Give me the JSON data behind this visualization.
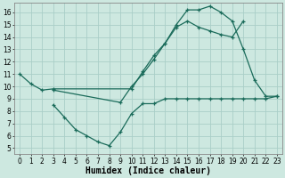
{
  "bg_color": "#cde8e0",
  "grid_color": "#aacec8",
  "line_color": "#1a6b5a",
  "line_width": 0.9,
  "marker": "+",
  "markersize": 3.5,
  "markeredgewidth": 0.9,
  "xlabel": "Humidex (Indice chaleur)",
  "xlabel_fontsize": 7,
  "tick_fontsize": 5.5,
  "xlim": [
    -0.5,
    23.5
  ],
  "ylim": [
    4.5,
    16.8
  ],
  "yticks": [
    5,
    6,
    7,
    8,
    9,
    10,
    11,
    12,
    13,
    14,
    15,
    16
  ],
  "xticks": [
    0,
    1,
    2,
    3,
    4,
    5,
    6,
    7,
    8,
    9,
    10,
    11,
    12,
    13,
    14,
    15,
    16,
    17,
    18,
    19,
    20,
    21,
    22,
    23
  ],
  "line1_x": [
    0,
    1,
    2,
    3,
    10,
    11,
    12,
    13,
    14,
    15,
    16,
    17,
    18,
    19,
    20,
    21,
    22,
    23
  ],
  "line1_y": [
    11.0,
    10.2,
    9.7,
    9.8,
    9.8,
    11.2,
    12.5,
    13.5,
    15.0,
    16.2,
    16.2,
    16.5,
    16.0,
    15.3,
    13.0,
    10.5,
    9.2,
    9.2
  ],
  "line2_x": [
    3,
    4,
    5,
    6,
    7,
    8,
    9,
    10,
    11,
    12,
    13,
    14,
    15,
    16,
    17,
    18,
    19,
    20,
    21,
    22,
    23
  ],
  "line2_y": [
    8.5,
    7.5,
    6.5,
    6.0,
    5.5,
    5.2,
    6.3,
    7.8,
    8.6,
    8.6,
    9.0,
    9.0,
    9.0,
    9.0,
    9.0,
    9.0,
    9.0,
    9.0,
    9.0,
    9.0,
    9.2
  ],
  "line3_x": [
    3,
    9,
    10,
    11,
    12,
    13,
    14,
    15,
    16,
    17,
    18,
    19,
    20
  ],
  "line3_y": [
    9.7,
    8.7,
    10.0,
    11.0,
    12.2,
    13.5,
    14.8,
    15.3,
    14.8,
    14.5,
    14.2,
    14.0,
    15.3
  ]
}
